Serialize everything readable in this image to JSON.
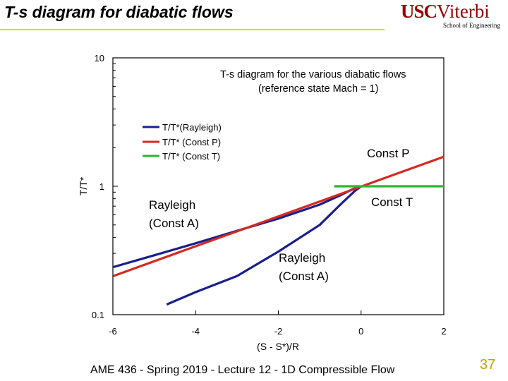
{
  "slide": {
    "title": "T-s diagram for diabatic flows",
    "footer": "AME 436 - Spring 2019 - Lecture 12 - 1D Compressible Flow",
    "page_number": "37",
    "logo_main_bold": "USC",
    "logo_main_rest": "Viterbi",
    "logo_sub": "School of Engineering"
  },
  "colors": {
    "rayleigh": "#1a1f8c",
    "const_p": "#d42a22",
    "const_t": "#2db52d",
    "title_rule": "#f2c94c",
    "brand": "#990000",
    "page_number": "#c8a000"
  },
  "chart_data": {
    "type": "line",
    "title": "T-s diagram for the various diabatic flows",
    "subtitle": "(reference state Mach = 1)",
    "xlabel": "(S - S*)/R",
    "ylabel": "T/T*",
    "xlim": [
      -6,
      2
    ],
    "ylim": [
      0.1,
      10
    ],
    "yscale": "log",
    "x_ticks": [
      -6,
      -4,
      -2,
      0,
      2
    ],
    "x_tick_labels": [
      "-6",
      "-4",
      "-2",
      "0",
      "2"
    ],
    "y_ticks": [
      0.1,
      1,
      10
    ],
    "y_tick_labels": [
      "0.1",
      "1",
      "10"
    ],
    "grid": false,
    "legend_position": "upper-left",
    "series": [
      {
        "name": "T/T*(Rayleigh)",
        "color_key": "rayleigh",
        "points": [
          [
            -5.99,
            0.235
          ],
          [
            -5.0,
            0.29
          ],
          [
            -4.0,
            0.36
          ],
          [
            -3.0,
            0.45
          ],
          [
            -2.0,
            0.56
          ],
          [
            -1.0,
            0.72
          ],
          [
            -0.5,
            0.85
          ],
          [
            -0.2,
            0.95
          ],
          [
            0.0,
            1.0
          ],
          [
            -0.15,
            0.92
          ],
          [
            -0.5,
            0.72
          ],
          [
            -1.0,
            0.5
          ],
          [
            -2.0,
            0.31
          ],
          [
            -3.0,
            0.2
          ],
          [
            -4.0,
            0.15
          ],
          [
            -4.7,
            0.12
          ]
        ]
      },
      {
        "name": "T/T* (Const P)",
        "color_key": "const_p",
        "points": [
          [
            -5.99,
            0.2
          ],
          [
            2.0,
            1.7
          ]
        ]
      },
      {
        "name": "T/T* (Const T)",
        "color_key": "const_t",
        "points": [
          [
            -0.65,
            1.0
          ],
          [
            2.0,
            1.0
          ]
        ]
      }
    ],
    "annotations": [
      {
        "text": "Const P"
      },
      {
        "text": "Const T"
      },
      {
        "text": "Rayleigh",
        "text2": "(Const A)"
      },
      {
        "text": "Rayleigh",
        "text2": "(Const A)"
      }
    ]
  }
}
